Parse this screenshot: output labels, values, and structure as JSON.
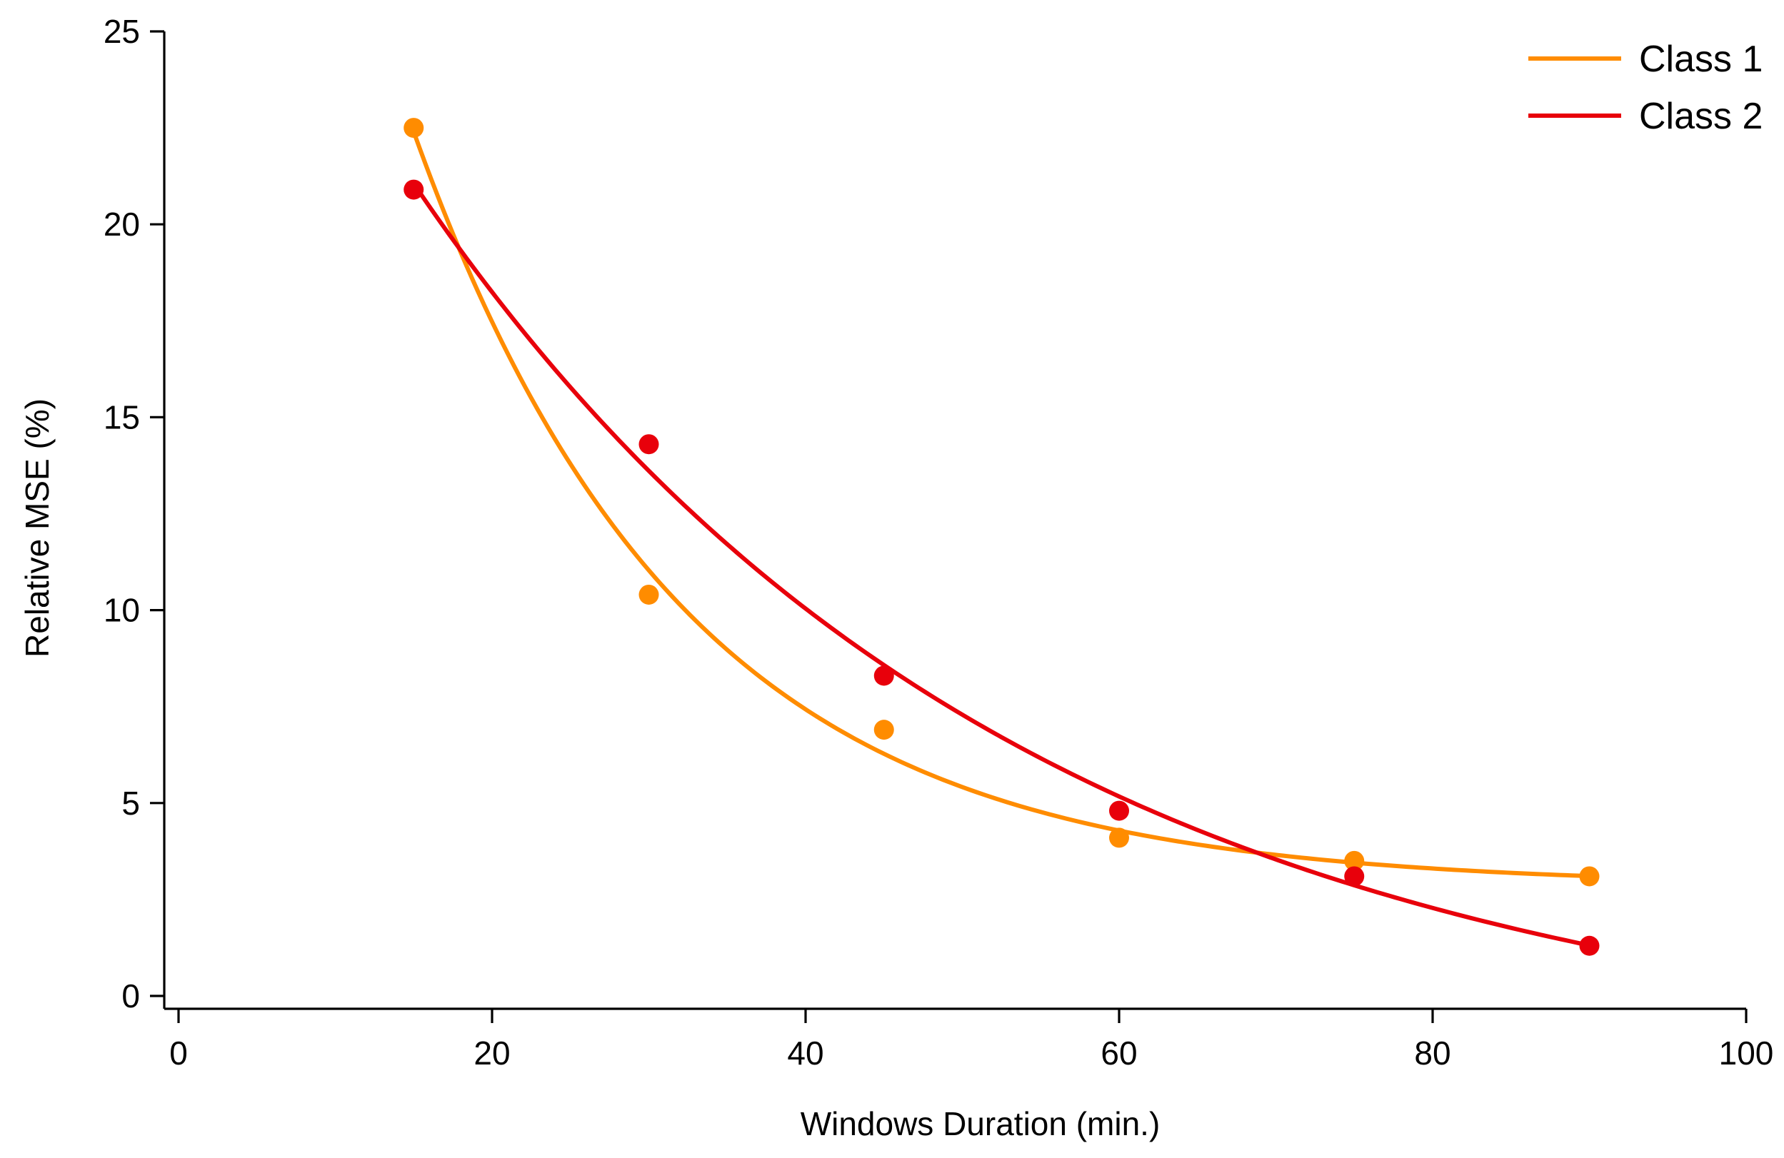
{
  "chart_data": {
    "type": "scatter",
    "title": "",
    "xlabel": "Windows Duration (min.)",
    "ylabel": "Relative MSE (%)",
    "xlim": [
      0,
      100
    ],
    "ylim": [
      0,
      25
    ],
    "xticks": [
      0,
      20,
      40,
      60,
      80,
      100
    ],
    "yticks": [
      0,
      5,
      10,
      15,
      20,
      25
    ],
    "legend_position": "top-right",
    "series": [
      {
        "name": "Class 1",
        "color": "#FF8C00",
        "x": [
          15,
          30,
          45,
          60,
          75,
          90
        ],
        "values": [
          22.5,
          10.4,
          6.9,
          4.1,
          3.5,
          3.1
        ],
        "fit": "exponential"
      },
      {
        "name": "Class 2",
        "color": "#E8000B",
        "x": [
          15,
          30,
          45,
          60,
          75,
          90
        ],
        "values": [
          20.9,
          14.3,
          8.3,
          4.8,
          3.1,
          1.3
        ],
        "fit": "exponential"
      }
    ]
  }
}
